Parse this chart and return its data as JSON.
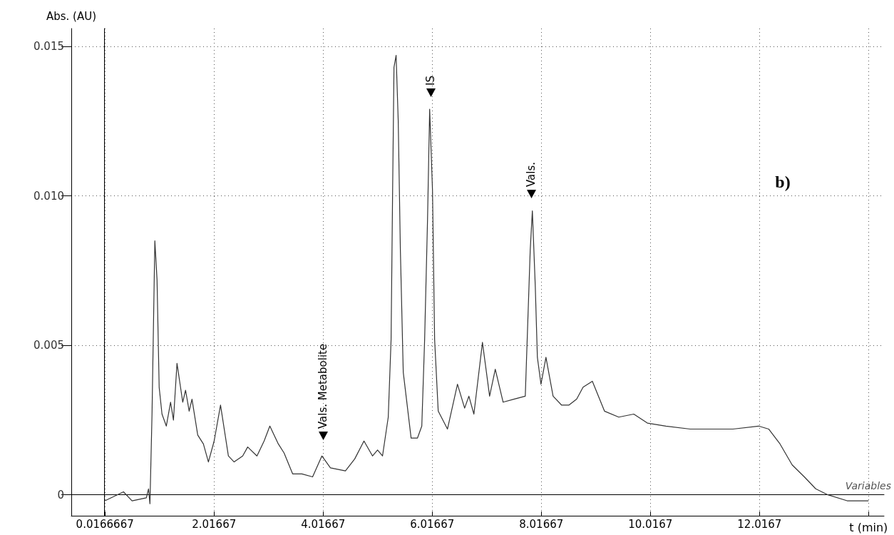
{
  "chart_data": {
    "type": "line",
    "xlabel": "t (min)",
    "ylabel": "Abs. (AU)",
    "x": [
      0.017,
      0.357,
      0.514,
      0.776,
      0.816,
      0.842,
      0.88,
      0.906,
      0.932,
      0.972,
      1.011,
      1.063,
      1.142,
      1.22,
      1.273,
      1.338,
      1.443,
      1.495,
      1.561,
      1.613,
      1.718,
      1.822,
      1.914,
      2.019,
      2.136,
      2.28,
      2.385,
      2.542,
      2.634,
      2.804,
      2.935,
      3.04,
      3.196,
      3.301,
      3.458,
      3.628,
      3.824,
      3.994,
      4.151,
      4.426,
      4.596,
      4.766,
      4.923,
      5.015,
      5.106,
      5.211,
      5.263,
      5.29,
      5.316,
      5.355,
      5.394,
      5.433,
      5.486,
      5.63,
      5.747,
      5.826,
      5.878,
      5.931,
      5.97,
      6.022,
      6.061,
      6.127,
      6.297,
      6.48,
      6.611,
      6.689,
      6.781,
      6.938,
      7.069,
      7.173,
      7.317,
      7.513,
      7.723,
      7.762,
      7.814,
      7.853,
      7.906,
      7.945,
      8.011,
      8.102,
      8.233,
      8.39,
      8.521,
      8.665,
      8.783,
      8.953,
      9.175,
      9.437,
      9.712,
      9.961,
      10.301,
      10.746,
      11.177,
      11.53,
      12.001,
      12.185,
      12.394,
      12.616,
      12.839,
      13.048,
      13.271,
      13.624,
      14.016
    ],
    "series": [
      {
        "color": "#333333",
        "values": [
          -0.0002,
          0.0001,
          -0.0002,
          -0.0001,
          0.0002,
          -0.0003,
          0.0027,
          0.0056,
          0.0085,
          0.0072,
          0.0036,
          0.0027,
          0.0023,
          0.0031,
          0.0025,
          0.0044,
          0.0031,
          0.0035,
          0.0028,
          0.0032,
          0.002,
          0.0017,
          0.0011,
          0.0018,
          0.003,
          0.0013,
          0.0011,
          0.0013,
          0.0016,
          0.0013,
          0.0018,
          0.0023,
          0.0017,
          0.0014,
          0.0007,
          0.0007,
          0.0006,
          0.0013,
          0.0009,
          0.0008,
          0.0012,
          0.0018,
          0.0013,
          0.0015,
          0.0013,
          0.0026,
          0.0052,
          0.01,
          0.0143,
          0.0147,
          0.0125,
          0.0082,
          0.0041,
          0.0019,
          0.0019,
          0.0023,
          0.0052,
          0.0092,
          0.0129,
          0.0102,
          0.0052,
          0.0028,
          0.0022,
          0.0037,
          0.0029,
          0.0033,
          0.0027,
          0.0051,
          0.0033,
          0.0042,
          0.0031,
          0.0032,
          0.0033,
          0.0054,
          0.0082,
          0.0095,
          0.007,
          0.0046,
          0.0037,
          0.0046,
          0.0033,
          0.003,
          0.003,
          0.0032,
          0.0036,
          0.0038,
          0.0028,
          0.0026,
          0.0027,
          0.0024,
          0.0023,
          0.0022,
          0.0022,
          0.0022,
          0.0023,
          0.0022,
          0.0017,
          0.001,
          0.0006,
          0.0002,
          0.0,
          -0.0002,
          -0.0002
        ]
      }
    ],
    "xlim": [
      -0.6,
      14.3
    ],
    "xticks": [
      0.0166667,
      2.01667,
      4.01667,
      6.01667,
      8.01667,
      10.0167,
      12.0167,
      {
        "value": 14.0167,
        "label": null
      }
    ],
    "ylim": [
      -0.0007,
      0.0156
    ],
    "yticks": [
      0,
      0.005,
      {
        "value": 0.01,
        "label": "0.010"
      },
      0.015
    ],
    "grid": true,
    "line_style": "solid",
    "annotations": [
      "Vals. Metabolite",
      "IS",
      "Vals.",
      "b)",
      "Variables"
    ]
  }
}
